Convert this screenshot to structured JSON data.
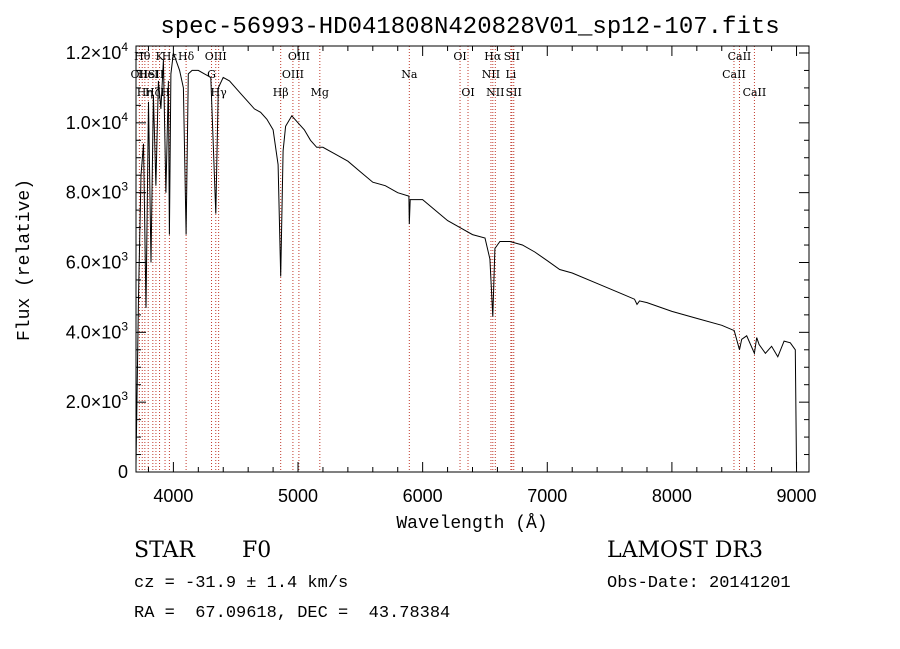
{
  "chart_data": {
    "type": "line",
    "title": "spec-56993-HD041808N420828V01_sp12-107.fits",
    "xlabel": "Wavelength (Å)",
    "ylabel": "Flux (relative)",
    "xlim": [
      3700,
      9100
    ],
    "ylim": [
      0,
      12200
    ],
    "x_ticks": [
      4000,
      5000,
      6000,
      7000,
      8000,
      9000
    ],
    "y_ticks": [
      {
        "value": 0,
        "mantissa": "0",
        "exp": ""
      },
      {
        "value": 2000,
        "mantissa": "2.0×10",
        "exp": "3"
      },
      {
        "value": 4000,
        "mantissa": "4.0×10",
        "exp": "3"
      },
      {
        "value": 6000,
        "mantissa": "6.0×10",
        "exp": "3"
      },
      {
        "value": 8000,
        "mantissa": "8.0×10",
        "exp": "3"
      },
      {
        "value": 10000,
        "mantissa": "1.0×10",
        "exp": "4"
      },
      {
        "value": 12000,
        "mantissa": "1.2×10",
        "exp": "4"
      }
    ],
    "series": [
      {
        "name": "spectrum",
        "x": [
          3700,
          3720,
          3740,
          3760,
          3780,
          3800,
          3820,
          3840,
          3860,
          3880,
          3900,
          3920,
          3940,
          3960,
          3968,
          3980,
          4000,
          4020,
          4050,
          4080,
          4102,
          4120,
          4150,
          4200,
          4250,
          4300,
          4340,
          4360,
          4400,
          4450,
          4500,
          4550,
          4600,
          4650,
          4700,
          4750,
          4800,
          4840,
          4861,
          4880,
          4900,
          4950,
          5000,
          5050,
          5100,
          5150,
          5200,
          5300,
          5400,
          5500,
          5600,
          5700,
          5800,
          5890,
          5893,
          5900,
          6000,
          6100,
          6200,
          6300,
          6400,
          6500,
          6540,
          6563,
          6580,
          6620,
          6700,
          6800,
          6900,
          7000,
          7100,
          7200,
          7400,
          7600,
          7700,
          7720,
          7740,
          7800,
          8000,
          8200,
          8400,
          8500,
          8542,
          8560,
          8600,
          8662,
          8680,
          8700,
          8750,
          8800,
          8850,
          8900,
          8950,
          8990,
          9000
        ],
        "y": [
          200,
          5000,
          8500,
          9400,
          4700,
          10600,
          6000,
          10800,
          8200,
          11200,
          10400,
          11800,
          8000,
          11200,
          6800,
          11400,
          12000,
          11800,
          11500,
          11000,
          6800,
          11400,
          11500,
          11500,
          11400,
          11300,
          7400,
          11000,
          11300,
          11200,
          11000,
          10800,
          10600,
          10400,
          10300,
          10100,
          9800,
          8800,
          5600,
          9200,
          9900,
          10200,
          10000,
          9800,
          9500,
          9300,
          9300,
          9100,
          8900,
          8600,
          8300,
          8200,
          8000,
          7900,
          7100,
          7800,
          7800,
          7500,
          7200,
          7000,
          6800,
          6700,
          6100,
          4450,
          6400,
          6600,
          6600,
          6500,
          6300,
          6050,
          5800,
          5700,
          5400,
          5100,
          4950,
          4800,
          4900,
          4850,
          4600,
          4400,
          4200,
          4050,
          3500,
          3800,
          3900,
          3400,
          3850,
          3650,
          3400,
          3600,
          3300,
          3750,
          3700,
          3500,
          100
        ]
      }
    ],
    "line_labels": [
      {
        "wavelength": 3727,
        "row": 1,
        "text": "OII"
      },
      {
        "wavelength": 3750,
        "row": 0,
        "text": "Hθ"
      },
      {
        "wavelength": 3771,
        "row": 2,
        "text": "Hη"
      },
      {
        "wavelength": 3798,
        "row": 1,
        "text": "HeI"
      },
      {
        "wavelength": 3835,
        "row": 2,
        "text": "Hζ"
      },
      {
        "wavelength": 3860,
        "row": 1,
        "text": "SII"
      },
      {
        "wavelength": 3889,
        "row": 0,
        "text": "K"
      },
      {
        "wavelength": 3933,
        "row": 2,
        "text": "H"
      },
      {
        "wavelength": 3968,
        "row": 0,
        "text": "Hε"
      },
      {
        "wavelength": 4102,
        "row": 0,
        "text": "Hδ"
      },
      {
        "wavelength": 4306,
        "row": 1,
        "text": "G"
      },
      {
        "wavelength": 4340,
        "row": 0,
        "text": "OIII"
      },
      {
        "wavelength": 4363,
        "row": 2,
        "text": "Hγ"
      },
      {
        "wavelength": 4861,
        "row": 2,
        "text": "Hβ"
      },
      {
        "wavelength": 4959,
        "row": 1,
        "text": "OIII"
      },
      {
        "wavelength": 5007,
        "row": 0,
        "text": "OIII"
      },
      {
        "wavelength": 5175,
        "row": 2,
        "text": "Mg"
      },
      {
        "wavelength": 5893,
        "row": 1,
        "text": "Na"
      },
      {
        "wavelength": 6300,
        "row": 0,
        "text": "OI"
      },
      {
        "wavelength": 6364,
        "row": 2,
        "text": "OI"
      },
      {
        "wavelength": 6548,
        "row": 1,
        "text": "NII"
      },
      {
        "wavelength": 6563,
        "row": 0,
        "text": "Hα"
      },
      {
        "wavelength": 6583,
        "row": 2,
        "text": "NII"
      },
      {
        "wavelength": 6708,
        "row": 1,
        "text": "Li"
      },
      {
        "wavelength": 6716,
        "row": 0,
        "text": "SII"
      },
      {
        "wavelength": 6731,
        "row": 2,
        "text": "SII"
      },
      {
        "wavelength": 8498,
        "row": 1,
        "text": "CaII"
      },
      {
        "wavelength": 8542,
        "row": 0,
        "text": "CaII"
      },
      {
        "wavelength": 8662,
        "row": 2,
        "text": "CaII"
      }
    ]
  },
  "info": {
    "object_class": "STAR",
    "subclass": "F0",
    "survey": "LAMOST DR3",
    "redshift": "cz = -31.9 ± 1.4 km/s",
    "obs_date": "Obs-Date: 20141201",
    "coords": "RA =  67.09618, DEC =  43.78384"
  }
}
